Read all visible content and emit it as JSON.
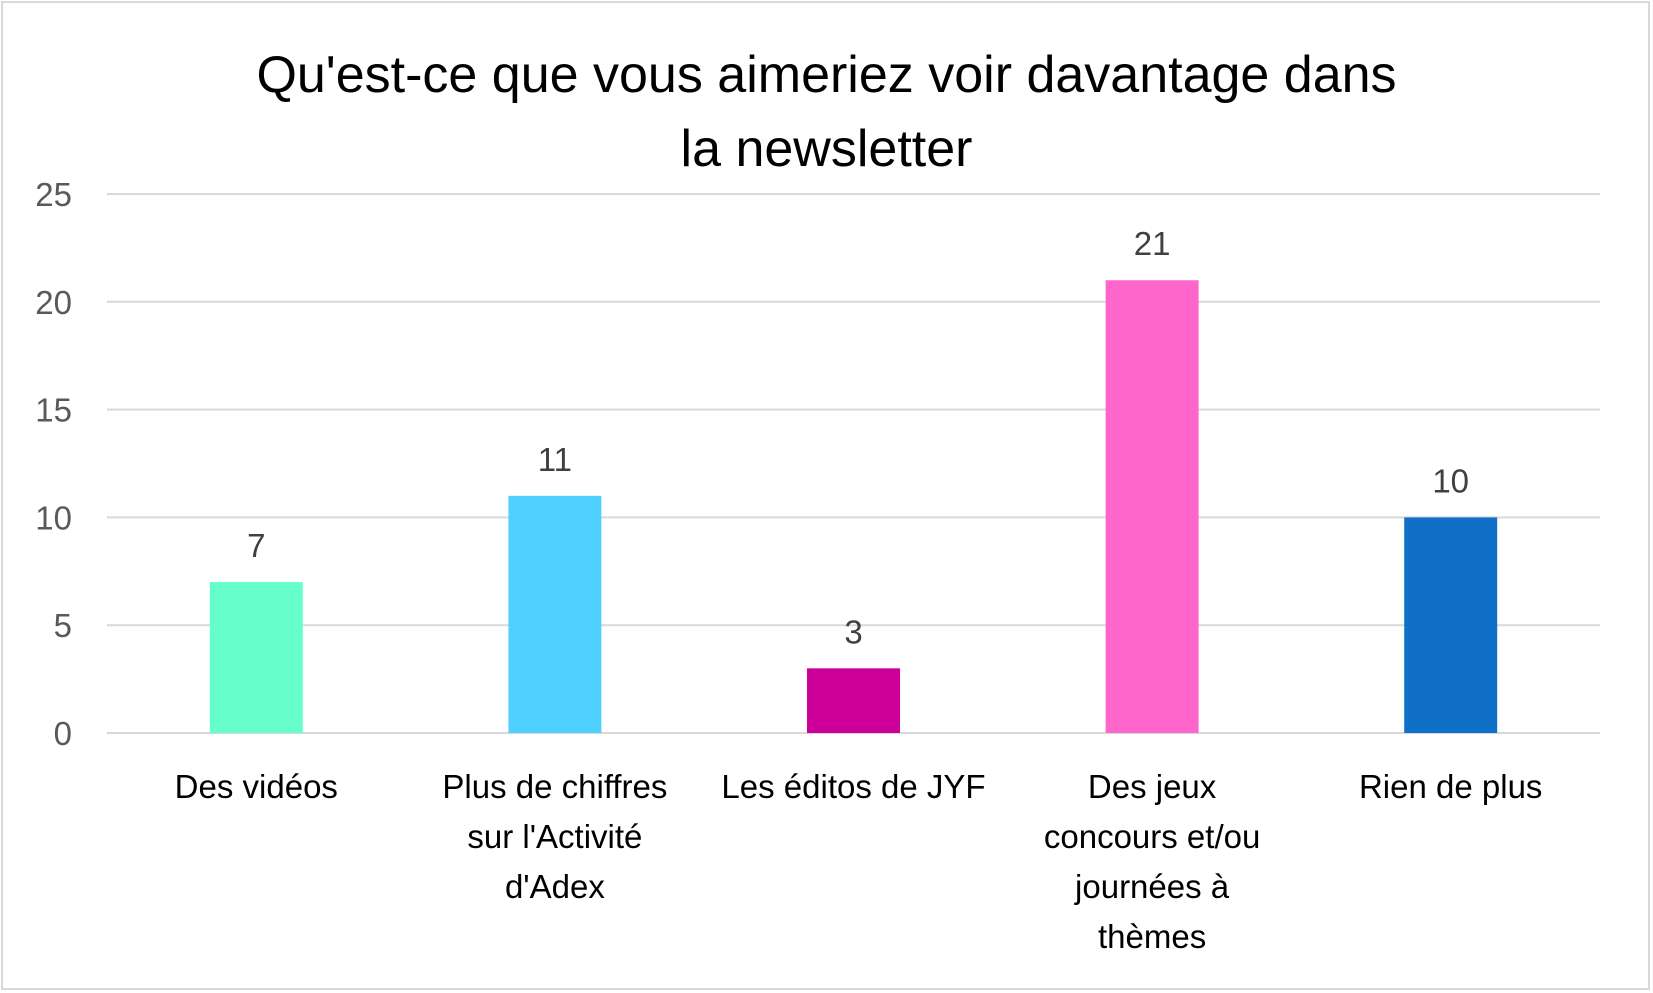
{
  "chart_data": {
    "type": "bar",
    "title_lines": [
      "Qu'est-ce que vous aimeriez voir davantage dans",
      "la newsletter"
    ],
    "categories": [
      [
        "Des vidéos"
      ],
      [
        "Plus de chiffres",
        "sur l'Activité",
        "d'Adex"
      ],
      [
        "Les éditos de JYF"
      ],
      [
        "Des jeux",
        "concours et/ou",
        "journées à",
        "thèmes"
      ],
      [
        "Rien de plus"
      ]
    ],
    "values": [
      7,
      11,
      3,
      21,
      10
    ],
    "colors": [
      "#66FFCC",
      "#4FD0FF",
      "#CC0099",
      "#FF66CC",
      "#1070C8"
    ],
    "ylim": [
      0,
      25
    ],
    "yticks": [
      0,
      5,
      10,
      15,
      20,
      25
    ],
    "grid": true,
    "legend": "none"
  }
}
